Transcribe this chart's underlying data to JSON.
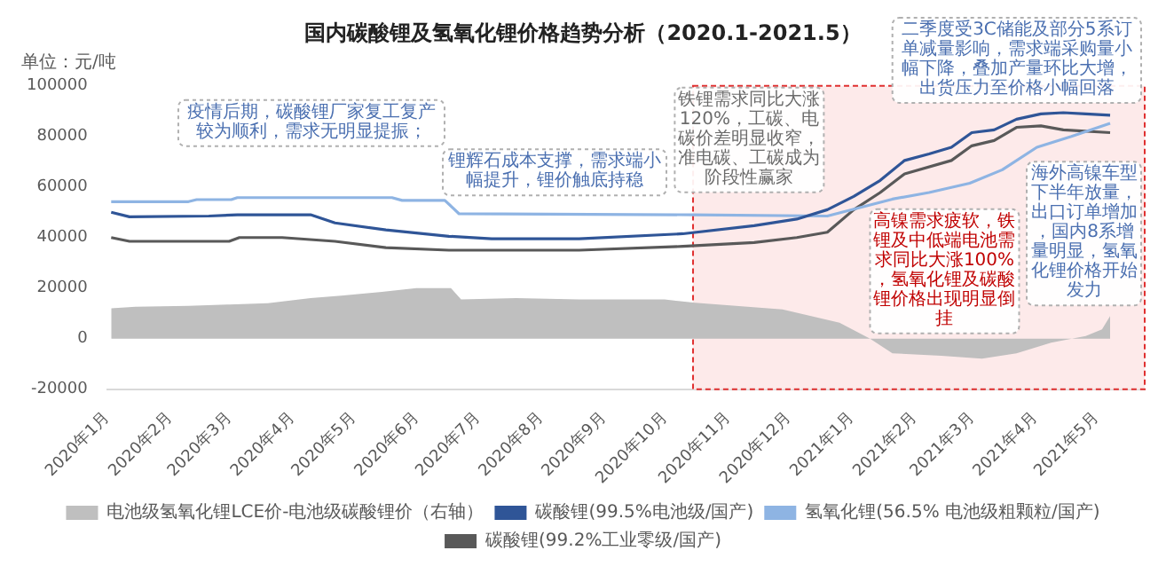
{
  "chart_data": {
    "type": "line",
    "title": "国内碳酸锂及氢氧化锂价格趋势分析（2020.1-2021.5）",
    "ylabel": "单位：元/吨",
    "xlim": [
      "2020-01-01",
      "2021-05-25"
    ],
    "xticks": [
      {
        "value": "2020-01-01",
        "label": "2020年1月"
      },
      {
        "value": "2020-02-01",
        "label": "2020年2月"
      },
      {
        "value": "2020-03-01",
        "label": "2020年3月"
      },
      {
        "value": "2020-04-01",
        "label": "2020年4月"
      },
      {
        "value": "2020-05-01",
        "label": "2020年5月"
      },
      {
        "value": "2020-06-01",
        "label": "2020年6月"
      },
      {
        "value": "2020-07-01",
        "label": "2020年7月"
      },
      {
        "value": "2020-08-01",
        "label": "2020年8月"
      },
      {
        "value": "2020-09-01",
        "label": "2020年9月"
      },
      {
        "value": "2020-10-01",
        "label": "2020年10月"
      },
      {
        "value": "2020-11-01",
        "label": "2020年11月"
      },
      {
        "value": "2020-12-01",
        "label": "2020年12月"
      },
      {
        "value": "2021-01-01",
        "label": "2021年1月"
      },
      {
        "value": "2021-02-01",
        "label": "2021年2月"
      },
      {
        "value": "2021-03-01",
        "label": "2021年3月"
      },
      {
        "value": "2021-04-01",
        "label": "2021年4月"
      },
      {
        "value": "2021-05-01",
        "label": "2021年5月"
      }
    ],
    "ylim": [
      -20000,
      100000
    ],
    "yticks": [
      -20000,
      0,
      20000,
      40000,
      60000,
      80000,
      100000
    ],
    "legend": "bottom",
    "series": [
      {
        "name": "电池级氢氧化锂LCE价-电池级碳酸锂价（右轴）",
        "type": "area",
        "color": "#bfbfbf",
        "x": [
          "2020-01-03",
          "2020-01-15",
          "2020-02-10",
          "2020-03-01",
          "2020-03-20",
          "2020-04-10",
          "2020-04-25",
          "2020-05-15",
          "2020-06-01",
          "2020-06-18",
          "2020-06-23",
          "2020-07-20",
          "2020-08-20",
          "2020-10-01",
          "2020-10-16",
          "2020-11-28",
          "2020-12-26",
          "2021-01-10",
          "2021-01-21",
          "2021-02-14",
          "2021-03-06",
          "2021-03-23",
          "2021-04-09",
          "2021-04-26",
          "2021-05-04",
          "2021-05-08"
        ],
        "values": [
          12000,
          12600,
          13000,
          13500,
          14000,
          16000,
          17000,
          18500,
          20000,
          20000,
          15500,
          16000,
          15500,
          15500,
          14200,
          11600,
          6300,
          0,
          -5800,
          -6800,
          -7900,
          -5800,
          -1600,
          1000,
          3700,
          8900
        ]
      },
      {
        "name": "碳酸锂(99.5%电池级/国产)",
        "color": "#2f5597",
        "x": [
          "2020-01-03",
          "2020-01-12",
          "2020-02-20",
          "2020-03-05",
          "2020-04-10",
          "2020-04-22",
          "2020-05-17",
          "2020-06-17",
          "2020-07-08",
          "2020-08-20",
          "2020-10-10",
          "2020-11-14",
          "2020-12-05",
          "2020-12-20",
          "2021-01-02",
          "2021-01-15",
          "2021-01-27",
          "2021-02-08",
          "2021-02-19",
          "2021-03-01",
          "2021-03-12",
          "2021-03-23",
          "2021-04-04",
          "2021-04-15",
          "2021-04-26",
          "2021-05-08"
        ],
        "values": [
          50000,
          48200,
          48500,
          49000,
          49000,
          45800,
          43000,
          40500,
          39500,
          39500,
          41500,
          44700,
          47300,
          51000,
          56300,
          62600,
          70500,
          73100,
          75700,
          81500,
          82600,
          86800,
          88900,
          89400,
          88900,
          88400
        ]
      },
      {
        "name": "氢氧化锂(56.5% 电池级粗颗粒/国产)",
        "color": "#8eb4e3",
        "x": [
          "2020-01-03",
          "2020-02-10",
          "2020-02-14",
          "2020-03-02",
          "2020-03-05",
          "2020-05-20",
          "2020-05-25",
          "2020-06-15",
          "2020-06-22",
          "2020-10-15",
          "2020-12-20",
          "2021-01-21",
          "2021-02-08",
          "2021-02-28",
          "2021-03-16",
          "2021-04-02",
          "2021-04-19",
          "2021-05-08"
        ],
        "values": [
          54200,
          54200,
          55000,
          55000,
          55800,
          55800,
          54700,
          54700,
          49400,
          49000,
          48500,
          55200,
          57800,
          61500,
          66800,
          75700,
          80000,
          85200
        ]
      },
      {
        "name": "碳酸锂(99.2%工业零级/国产)",
        "color": "#595959",
        "x": [
          "2020-01-03",
          "2020-01-12",
          "2020-03-01",
          "2020-03-06",
          "2020-03-27",
          "2020-04-22",
          "2020-05-17",
          "2020-06-17",
          "2020-08-20",
          "2020-10-10",
          "2020-11-14",
          "2020-12-05",
          "2020-12-20",
          "2021-01-02",
          "2021-01-15",
          "2021-01-27",
          "2021-02-19",
          "2021-03-01",
          "2021-03-12",
          "2021-03-23",
          "2021-04-04",
          "2021-04-15",
          "2021-05-08"
        ],
        "values": [
          40000,
          38500,
          38500,
          40000,
          40000,
          38500,
          36000,
          35000,
          35000,
          36500,
          38000,
          40000,
          42100,
          51000,
          57800,
          65200,
          70500,
          76300,
          78400,
          83600,
          84200,
          82600,
          81500
        ]
      }
    ],
    "bands": [
      {
        "axis": "x",
        "from": "2020-10-15",
        "to": "2021-05-25",
        "color": "#fdeaea"
      }
    ],
    "annotations": [
      "疫情后期，碳酸锂厂家复工复产较为顺利，需求无明显提振；",
      "锂辉石成本支撑，需求端小幅提升，锂价触底持稳",
      "铁锂需求同比大涨120%，工碳、电碳价差明显收窄，准电碳、工碳成为阶段性赢家",
      "二季度受3C储能及部分5系订单减量影响，需求端采购量小幅下降，叠加产量环比大增，出货压力至价格小幅回落",
      "海外高镍车型下半年放量，出口订单增加，国内8系增量明显，氢氧化锂价格开始发力",
      "高镍需求疲软，铁锂及中低端电池需求同比大涨100%，氢氧化锂及碳酸锂价格出现明显倒挂"
    ]
  }
}
